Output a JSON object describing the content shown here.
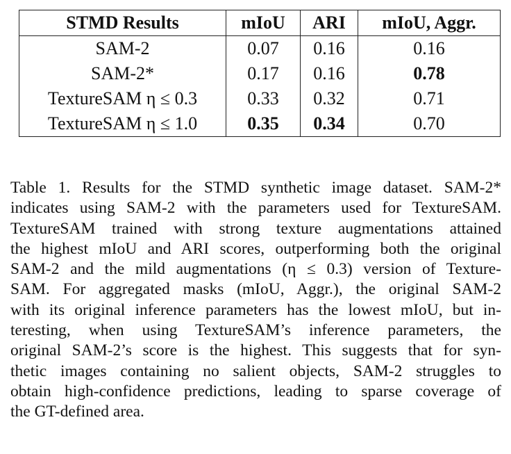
{
  "table": {
    "header": [
      "STMD Results",
      "mIoU",
      "ARI",
      "mIoU, Aggr."
    ],
    "rows": [
      [
        "SAM-2",
        "0.07",
        "0.16",
        "0.16"
      ],
      [
        "SAM-2*",
        "0.17",
        "0.16",
        "0.78"
      ],
      [
        "TextureSAM η ≤ 0.3",
        "0.33",
        "0.32",
        "0.71"
      ],
      [
        "TextureSAM η ≤ 1.0",
        "0.35",
        "0.34",
        "0.70"
      ]
    ],
    "bold_cells": [
      [
        1,
        3
      ],
      [
        3,
        1
      ],
      [
        3,
        2
      ]
    ]
  },
  "caption": {
    "lines": [
      "Table 1. Results for the STMD synthetic image dataset. SAM-2*",
      "indicates using SAM-2 with the parameters used for TextureSAM.",
      "TextureSAM trained with strong texture augmentations attained",
      "the highest mIoU and ARI scores, outperforming both the original",
      "SAM-2 and the mild augmentations (η ≤ 0.3) version of Texture-",
      "SAM. For aggregated masks (mIoU, Aggr.), the original SAM-2",
      "with its original inference parameters has the lowest mIoU, but in-",
      "teresting, when using TextureSAM’s inference parameters, the",
      "original SAM-2’s score is the highest. This suggests that for syn-",
      "thetic images containing no salient objects, SAM-2 struggles to",
      "obtain high-confidence predictions, leading to sparse coverage of",
      "the GT-defined area."
    ]
  }
}
